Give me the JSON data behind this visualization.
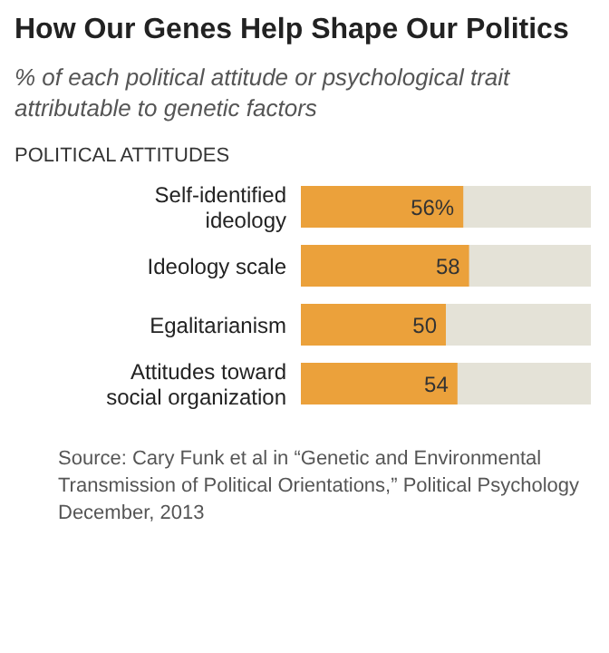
{
  "chart_data": {
    "type": "bar",
    "orientation": "horizontal",
    "title": "How Our Genes Help Shape Our Politics",
    "subtitle": "% of each political attitude or psychological trait attributable to genetic factors",
    "ylabel": "POLITICAL ATTITUDES",
    "categories": [
      "Self-identified ideology",
      "Ideology scale",
      "Egalitarianism",
      "Attitudes toward social organization"
    ],
    "values": [
      56,
      58,
      50,
      54
    ],
    "value_labels": [
      "56%",
      "58",
      "50",
      "54"
    ],
    "color": "#eba13b",
    "xlim": [
      0,
      100
    ],
    "annotations": [
      "Source: Cary Funk et al in “Genetic and Environmental Transmission of Political Orientations,” Political Psychology December, 2013"
    ]
  }
}
